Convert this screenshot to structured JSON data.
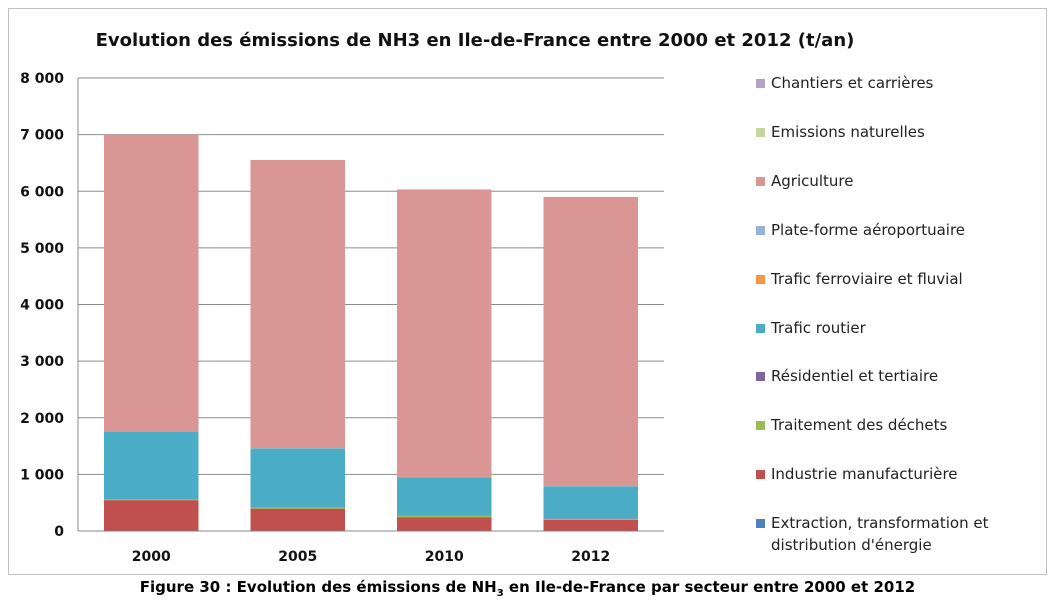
{
  "chart_data": {
    "type": "bar",
    "stacked": true,
    "title": "Evolution des émissions de NH3 en Ile-de-France entre 2000 et 2012  (t/an)",
    "categories": [
      "2000",
      "2005",
      "2010",
      "2012"
    ],
    "ylim": [
      0,
      8000
    ],
    "yticks": [
      0,
      1000,
      2000,
      3000,
      4000,
      5000,
      6000,
      7000,
      8000
    ],
    "ytick_labels": [
      "0",
      "1 000",
      "2 000",
      "3 000",
      "4 000",
      "5 000",
      "6 000",
      "7 000",
      "8 000"
    ],
    "grid": true,
    "legend_position": "right",
    "series": [
      {
        "name": "Extraction, transformation et distribution d'énergie",
        "color": "#4F81BD",
        "values": [
          5,
          5,
          5,
          5
        ]
      },
      {
        "name": "Industrie manufacturière",
        "color": "#C0504D",
        "values": [
          540,
          390,
          240,
          190
        ]
      },
      {
        "name": "Traitement des déchets",
        "color": "#9BBB59",
        "values": [
          10,
          20,
          20,
          20
        ]
      },
      {
        "name": "Résidentiel et tertiaire",
        "color": "#8064A2",
        "values": [
          5,
          5,
          5,
          5
        ]
      },
      {
        "name": "Trafic routier",
        "color": "#4BACC6",
        "values": [
          1200,
          1040,
          680,
          570
        ]
      },
      {
        "name": "Trafic ferroviaire et fluvial",
        "color": "#F79646",
        "values": [
          2,
          2,
          2,
          2
        ]
      },
      {
        "name": "Plate-forme aéroportuaire",
        "color": "#95B3D7",
        "values": [
          2,
          2,
          2,
          2
        ]
      },
      {
        "name": "Agriculture",
        "color": "#D99694",
        "values": [
          5236,
          5088,
          5078,
          5106
        ]
      },
      {
        "name": "Emissions naturelles",
        "color": "#C3D69B",
        "values": [
          0,
          0,
          0,
          0
        ]
      },
      {
        "name": "Chantiers et carrières",
        "color": "#B3A2C7",
        "values": [
          0,
          0,
          0,
          0
        ]
      }
    ]
  },
  "caption": {
    "prefix": "Figure 30 : Evolution des émissions de NH",
    "subscript": "3",
    "suffix": " en Ile-de-France par secteur entre 2000 et 2012"
  },
  "legend_order": [
    "Chantiers et carrières",
    "Emissions naturelles",
    "Agriculture",
    "Plate-forme aéroportuaire",
    "Trafic ferroviaire et fluvial",
    "Trafic routier",
    "Résidentiel et tertiaire",
    "Traitement des déchets",
    "Industrie manufacturière",
    "Extraction, transformation et distribution d'énergie"
  ]
}
